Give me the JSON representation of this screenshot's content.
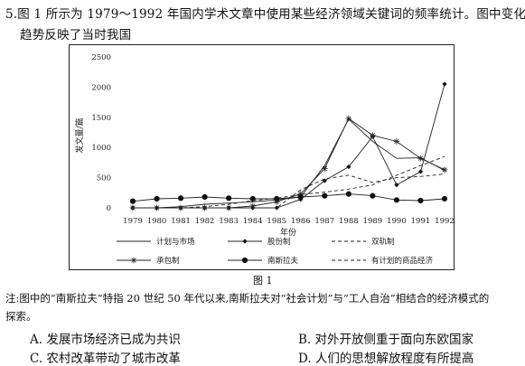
{
  "question": {
    "number": "5.",
    "text_line1": "图 1 所示为 1979～1992 年国内学术文章中使用某些经济领域关键词的频率统计。图中变化",
    "text_line2": "趋势反映了当时我国"
  },
  "figure_caption": "图 1",
  "note_line1": "注:图中的“南斯拉夫”特指 20 世纪 50 年代以来,南斯拉夫对“社会计划”与“工人自治”相结合的经济模式的",
  "note_line2": "探索。",
  "options": [
    {
      "label": "A. 发展市场经济已成为共识"
    },
    {
      "label": "B. 对外开放侧重于面向东欧国家"
    },
    {
      "label": "C. 农村改革带动了城市改革"
    },
    {
      "label": "D. 人们的思想解放程度有所提高"
    }
  ],
  "chart_data": {
    "type": "line",
    "title": "",
    "xlabel": "年份",
    "ylabel": "发文量/篇",
    "ylim": [
      0,
      2500
    ],
    "yticks": [
      0,
      500,
      1000,
      1500,
      2000,
      2500
    ],
    "x": [
      "1979",
      "1980",
      "1981",
      "1982",
      "1983",
      "1984",
      "1985",
      "1986",
      "1987",
      "1988",
      "1989",
      "1990",
      "1991",
      "1992"
    ],
    "legend_position": "bottom",
    "grid": false,
    "series": [
      {
        "name": "计划与市场",
        "style": "solid",
        "marker": "none",
        "values": [
          0,
          0,
          20,
          60,
          80,
          100,
          130,
          180,
          700,
          1470,
          1100,
          820,
          830,
          620
        ]
      },
      {
        "name": "股份制",
        "style": "solid",
        "marker": "diamond",
        "values": [
          0,
          0,
          0,
          0,
          0,
          0,
          0,
          140,
          450,
          680,
          1180,
          380,
          600,
          2050
        ]
      },
      {
        "name": "双轨制",
        "style": "dashed",
        "marker": "none",
        "values": [
          0,
          0,
          0,
          0,
          0,
          0,
          0,
          300,
          480,
          540,
          420,
          500,
          520,
          560
        ]
      },
      {
        "name": "承包制",
        "style": "solid",
        "marker": "asterisk",
        "values": [
          0,
          0,
          0,
          0,
          0,
          30,
          100,
          230,
          650,
          1480,
          1200,
          1100,
          820,
          630
        ]
      },
      {
        "name": "南斯拉夫",
        "style": "solid",
        "marker": "circle",
        "values": [
          110,
          150,
          160,
          180,
          160,
          150,
          150,
          180,
          200,
          230,
          200,
          130,
          120,
          150
        ]
      },
      {
        "name": "有计划的商品经济",
        "style": "dashed",
        "marker": "none",
        "values": [
          0,
          0,
          0,
          20,
          60,
          120,
          160,
          220,
          260,
          310,
          380,
          540,
          700,
          850
        ]
      }
    ]
  }
}
